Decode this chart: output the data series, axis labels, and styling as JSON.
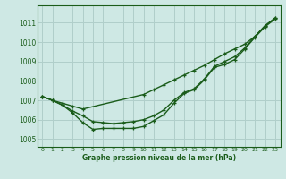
{
  "xlabel": "Graphe pression niveau de la mer (hPa)",
  "bg_color": "#cee8e4",
  "grid_color": "#b0ceca",
  "line_color": "#1a5c1a",
  "xlim": [
    -0.5,
    23.5
  ],
  "ylim": [
    1004.6,
    1011.9
  ],
  "yticks": [
    1005,
    1006,
    1007,
    1008,
    1009,
    1010,
    1011
  ],
  "xticks": [
    0,
    1,
    2,
    3,
    4,
    5,
    6,
    7,
    8,
    9,
    10,
    11,
    12,
    13,
    14,
    15,
    16,
    17,
    18,
    19,
    20,
    21,
    22,
    23
  ],
  "line1_x": [
    0,
    1,
    2,
    3,
    4,
    10,
    11,
    12,
    13,
    14,
    15,
    16,
    17,
    18,
    19,
    20,
    21,
    22,
    23
  ],
  "line1_y": [
    1007.2,
    1007.0,
    1006.85,
    1006.7,
    1006.55,
    1007.3,
    1007.55,
    1007.8,
    1008.05,
    1008.3,
    1008.55,
    1008.8,
    1009.1,
    1009.4,
    1009.65,
    1009.9,
    1010.3,
    1010.85,
    1011.25
  ],
  "line2_x": [
    0,
    1,
    2,
    3,
    4,
    5,
    6,
    7,
    8,
    9,
    10,
    11,
    12,
    13,
    14,
    15,
    16,
    17,
    18,
    19,
    20,
    21,
    22,
    23
  ],
  "line2_y": [
    1007.2,
    1007.0,
    1006.75,
    1006.45,
    1006.2,
    1005.9,
    1005.85,
    1005.8,
    1005.85,
    1005.9,
    1006.0,
    1006.2,
    1006.5,
    1007.0,
    1007.4,
    1007.6,
    1008.1,
    1008.75,
    1009.0,
    1009.25,
    1009.7,
    1010.3,
    1010.85,
    1011.25
  ],
  "line3_x": [
    0,
    1,
    2,
    3,
    4,
    5,
    6,
    7,
    8,
    9,
    10,
    11,
    12,
    13,
    14,
    15,
    16,
    17,
    18,
    19,
    20,
    21,
    22,
    23
  ],
  "line3_y": [
    1007.2,
    1007.0,
    1006.75,
    1006.35,
    1005.85,
    1005.5,
    1005.55,
    1005.55,
    1005.55,
    1005.55,
    1005.65,
    1005.95,
    1006.25,
    1006.85,
    1007.35,
    1007.55,
    1008.05,
    1008.7,
    1008.85,
    1009.1,
    1009.65,
    1010.25,
    1010.8,
    1011.2
  ]
}
